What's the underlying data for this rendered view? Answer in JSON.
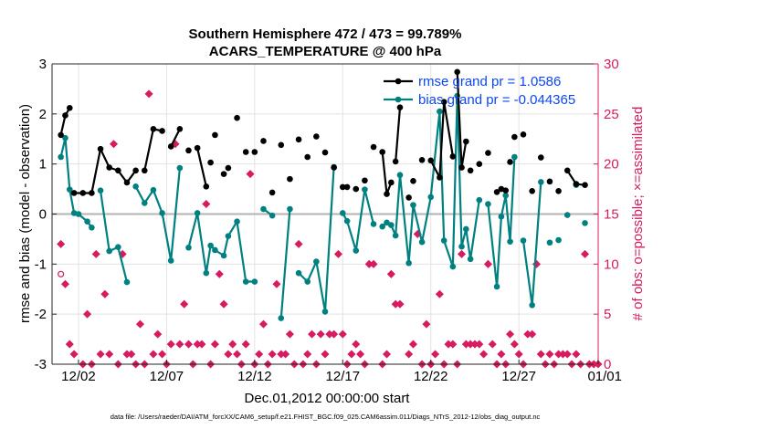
{
  "chart_data": {
    "type": "line",
    "title": "Southern Hemisphere 472 / 473 = 99.789%",
    "subtitle": "ACARS_TEMPERATURE @ 400 hPa",
    "xlabel": "Dec.01,2012 00:00:00 start",
    "ylabel": "rmse and bias (model - observation)",
    "y2label": "# of obs: o=possible; ×=assimilated",
    "footnote": "data file: /Users/raeder/DAI/ATM_forcXX/CAM6_setup/f.e21.FHIST_BGC.f09_025.CAM6assim.011/Diags_NTrS_2012-12/obs_diag_output.nc",
    "xlim": [
      0.5,
      31.5
    ],
    "ylim": [
      -3,
      3
    ],
    "y2lim": [
      0,
      30
    ],
    "x_ticks": [
      {
        "x": 2,
        "label": "12/02"
      },
      {
        "x": 7,
        "label": "12/07"
      },
      {
        "x": 12,
        "label": "12/12"
      },
      {
        "x": 17,
        "label": "12/17"
      },
      {
        "x": 22,
        "label": "12/22"
      },
      {
        "x": 27,
        "label": "12/27"
      },
      {
        "x": 32,
        "label": "01/01"
      }
    ],
    "y_ticks": [
      -3,
      -2,
      -1,
      0,
      1,
      2,
      3
    ],
    "y2_ticks": [
      0,
      5,
      10,
      15,
      20,
      25,
      30
    ],
    "grid": true,
    "legend_position": "top-right",
    "colors": {
      "rmse": "#000000",
      "bias": "#008080",
      "obs": "#d81b60"
    },
    "series": [
      {
        "name": "rmse grand pr = 1.0586",
        "key": "rmse",
        "points": [
          [
            1.0,
            1.58
          ],
          [
            1.25,
            1.97
          ],
          [
            1.5,
            2.12
          ],
          [
            1.75,
            0.42
          ],
          [
            2.25,
            0.42
          ],
          [
            2.75,
            0.42
          ],
          [
            3.25,
            1.3
          ],
          [
            3.75,
            0.93
          ],
          [
            4.25,
            0.87
          ],
          [
            4.75,
            0.63
          ],
          [
            5.25,
            0.87
          ],
          [
            5.75,
            0.87
          ],
          [
            6.25,
            1.7
          ],
          [
            6.75,
            1.66
          ],
          [
            7.25,
            1.35
          ],
          [
            7.75,
            1.7
          ],
          [
            8.25,
            1.27
          ],
          [
            8.75,
            1.32
          ],
          [
            9.25,
            0.55
          ],
          [
            9.5,
            1.03
          ],
          [
            9.75,
            1.58
          ],
          [
            10.25,
            0.8
          ],
          [
            10.5,
            0.92
          ],
          [
            11.0,
            1.92
          ],
          [
            11.5,
            1.24
          ],
          [
            12.0,
            1.24
          ],
          [
            12.5,
            1.46
          ],
          [
            13.0,
            0.43
          ],
          [
            13.5,
            1.38
          ],
          [
            14.0,
            0.7
          ],
          [
            14.5,
            1.49
          ],
          [
            15.0,
            1.14
          ],
          [
            15.5,
            1.55
          ],
          [
            16.0,
            1.23
          ],
          [
            16.5,
            0.93
          ],
          [
            17.0,
            0.54
          ],
          [
            17.25,
            0.54
          ],
          [
            17.75,
            0.5
          ],
          [
            18.25,
            0.67
          ],
          [
            18.75,
            1.34
          ],
          [
            19.25,
            1.24
          ],
          [
            19.5,
            0.4
          ],
          [
            19.75,
            0.63
          ],
          [
            20.0,
            1.05
          ],
          [
            20.25,
            2.13
          ],
          [
            20.75,
            0.33
          ],
          [
            21.0,
            0.66
          ],
          [
            21.5,
            1.08
          ],
          [
            22.0,
            1.07
          ],
          [
            22.5,
            0.73
          ],
          [
            22.75,
            2.24
          ],
          [
            23.25,
            1.15
          ],
          [
            23.5,
            2.84
          ],
          [
            23.75,
            0.93
          ],
          [
            24.0,
            1.45
          ],
          [
            24.25,
            0.87
          ],
          [
            24.75,
            1.0
          ],
          [
            25.25,
            1.22
          ],
          [
            25.75,
            0.44
          ],
          [
            26.0,
            0.5
          ],
          [
            26.25,
            0.47
          ],
          [
            26.5,
            1.04
          ],
          [
            26.75,
            1.54
          ],
          [
            27.25,
            1.59
          ],
          [
            27.75,
            0.46
          ],
          [
            28.25,
            1.13
          ],
          [
            28.75,
            0.65
          ],
          [
            29.25,
            0.46
          ],
          [
            29.75,
            0.87
          ],
          [
            30.25,
            0.6
          ],
          [
            30.75,
            0.58
          ]
        ],
        "break_before": [
          3,
          11,
          14,
          16,
          17,
          19,
          20,
          21,
          22,
          23,
          24,
          25,
          26,
          27,
          28,
          29,
          30,
          31,
          32,
          33,
          34,
          35,
          36,
          37,
          38,
          39,
          40,
          43,
          45,
          46,
          47,
          48,
          52,
          55,
          56,
          57,
          58,
          59,
          60,
          61,
          62,
          63,
          64,
          65,
          66,
          67,
          68
        ]
      },
      {
        "name": "bias grand pr = -0.044365",
        "key": "bias",
        "points": [
          [
            1.0,
            1.14
          ],
          [
            1.25,
            1.52
          ],
          [
            1.5,
            0.49
          ],
          [
            1.75,
            0.02
          ],
          [
            2.0,
            0.0
          ],
          [
            2.5,
            -0.15
          ],
          [
            2.75,
            -0.27
          ],
          [
            3.25,
            0.47
          ],
          [
            3.75,
            -0.74
          ],
          [
            4.25,
            -0.66
          ],
          [
            4.75,
            -1.36
          ],
          [
            5.25,
            0.55
          ],
          [
            5.75,
            0.22
          ],
          [
            6.25,
            0.48
          ],
          [
            6.75,
            0.02
          ],
          [
            7.25,
            -0.93
          ],
          [
            7.75,
            0.92
          ],
          [
            8.25,
            -0.67
          ],
          [
            8.75,
            0.02
          ],
          [
            9.25,
            -1.18
          ],
          [
            9.5,
            -0.63
          ],
          [
            9.75,
            -0.72
          ],
          [
            10.25,
            -0.83
          ],
          [
            10.5,
            -0.44
          ],
          [
            11.0,
            -0.15
          ],
          [
            11.5,
            -1.35
          ],
          [
            12.0,
            -1.35
          ],
          [
            12.5,
            0.1
          ],
          [
            13.0,
            -0.03
          ],
          [
            13.5,
            -2.08
          ],
          [
            14.0,
            0.1
          ],
          [
            14.5,
            -1.18
          ],
          [
            15.0,
            -1.35
          ],
          [
            15.5,
            -0.95
          ],
          [
            16.0,
            -1.95
          ],
          [
            16.5,
            0.94
          ],
          [
            17.0,
            0.02
          ],
          [
            17.25,
            -0.14
          ],
          [
            17.75,
            -0.73
          ],
          [
            18.25,
            0.49
          ],
          [
            18.75,
            -0.2
          ],
          [
            19.25,
            -0.25
          ],
          [
            19.5,
            -0.17
          ],
          [
            19.75,
            -0.22
          ],
          [
            20.0,
            -0.43
          ],
          [
            20.25,
            0.78
          ],
          [
            20.75,
            -0.98
          ],
          [
            21.0,
            0.18
          ],
          [
            21.5,
            -0.56
          ],
          [
            22.0,
            0.34
          ],
          [
            22.5,
            2.05
          ],
          [
            22.75,
            -0.53
          ],
          [
            23.25,
            -1.05
          ],
          [
            23.5,
            2.36
          ],
          [
            23.75,
            -0.65
          ],
          [
            24.0,
            -0.3
          ],
          [
            24.25,
            -0.9
          ],
          [
            24.75,
            0.28
          ],
          [
            25.25,
            0.2
          ],
          [
            25.75,
            -1.45
          ],
          [
            26.0,
            -0.05
          ],
          [
            26.25,
            0.37
          ],
          [
            26.5,
            -0.55
          ],
          [
            26.75,
            1.14
          ],
          [
            27.25,
            -0.53
          ],
          [
            27.75,
            -1.82
          ],
          [
            28.25,
            0.64
          ],
          [
            28.75,
            -0.57
          ],
          [
            29.25,
            -0.52
          ],
          [
            29.75,
            -0.02
          ],
          [
            30.25,
            0.58
          ],
          [
            30.75,
            -0.18
          ]
        ],
        "break_before": [
          7,
          11,
          17,
          27,
          29,
          31,
          36,
          41,
          58,
          64,
          67,
          68,
          69,
          70,
          71
        ]
      },
      {
        "name": "obs assimilated",
        "key": "obs",
        "marker": "x",
        "points": [
          [
            1.0,
            12
          ],
          [
            1.25,
            8
          ],
          [
            1.5,
            2
          ],
          [
            1.75,
            1
          ],
          [
            2.25,
            0
          ],
          [
            2.5,
            5
          ],
          [
            2.75,
            0
          ],
          [
            3.0,
            11
          ],
          [
            3.25,
            1
          ],
          [
            3.5,
            7
          ],
          [
            3.75,
            1
          ],
          [
            4.0,
            22
          ],
          [
            4.25,
            0
          ],
          [
            4.5,
            11
          ],
          [
            4.75,
            1
          ],
          [
            5.0,
            1
          ],
          [
            5.25,
            0
          ],
          [
            5.5,
            4
          ],
          [
            5.75,
            0
          ],
          [
            6.0,
            27
          ],
          [
            6.25,
            1
          ],
          [
            6.5,
            3
          ],
          [
            6.75,
            1
          ],
          [
            7.0,
            0
          ],
          [
            7.25,
            2
          ],
          [
            7.5,
            22
          ],
          [
            7.75,
            2
          ],
          [
            8.0,
            6
          ],
          [
            8.25,
            2
          ],
          [
            8.5,
            0
          ],
          [
            8.75,
            2
          ],
          [
            9.0,
            2
          ],
          [
            9.25,
            16
          ],
          [
            9.5,
            0
          ],
          [
            9.75,
            2
          ],
          [
            10.0,
            9
          ],
          [
            10.25,
            6
          ],
          [
            10.5,
            1
          ],
          [
            10.75,
            2
          ],
          [
            11.0,
            1
          ],
          [
            11.25,
            0
          ],
          [
            11.5,
            2
          ],
          [
            11.75,
            19
          ],
          [
            12.0,
            0
          ],
          [
            12.25,
            1
          ],
          [
            12.5,
            4
          ],
          [
            12.75,
            0
          ],
          [
            13.0,
            1
          ],
          [
            13.25,
            8
          ],
          [
            13.5,
            1
          ],
          [
            13.75,
            1
          ],
          [
            14.0,
            3
          ],
          [
            14.25,
            0
          ],
          [
            14.5,
            12
          ],
          [
            14.75,
            0
          ],
          [
            15.0,
            1
          ],
          [
            15.25,
            3
          ],
          [
            15.5,
            0
          ],
          [
            15.75,
            3
          ],
          [
            16.0,
            1
          ],
          [
            16.25,
            3
          ],
          [
            16.5,
            3
          ],
          [
            16.75,
            11
          ],
          [
            17.0,
            3
          ],
          [
            17.25,
            0
          ],
          [
            17.5,
            1
          ],
          [
            17.75,
            2
          ],
          [
            18.0,
            1
          ],
          [
            18.25,
            0
          ],
          [
            18.5,
            10
          ],
          [
            18.75,
            10
          ],
          [
            19.25,
            0
          ],
          [
            19.5,
            1
          ],
          [
            19.75,
            9
          ],
          [
            20.0,
            6
          ],
          [
            20.25,
            6
          ],
          [
            20.75,
            1
          ],
          [
            21.0,
            2
          ],
          [
            21.25,
            13
          ],
          [
            21.5,
            0
          ],
          [
            21.75,
            4
          ],
          [
            22.0,
            0
          ],
          [
            22.25,
            1
          ],
          [
            22.5,
            7
          ],
          [
            22.75,
            0
          ],
          [
            23.0,
            2
          ],
          [
            23.25,
            2
          ],
          [
            23.5,
            0
          ],
          [
            23.75,
            11
          ],
          [
            24.0,
            2
          ],
          [
            24.25,
            2
          ],
          [
            24.5,
            2
          ],
          [
            24.75,
            2
          ],
          [
            25.0,
            1
          ],
          [
            25.25,
            10
          ],
          [
            25.5,
            2
          ],
          [
            25.75,
            0
          ],
          [
            26.0,
            1
          ],
          [
            26.25,
            0
          ],
          [
            26.5,
            3
          ],
          [
            26.75,
            2
          ],
          [
            27.0,
            1
          ],
          [
            27.25,
            0
          ],
          [
            27.5,
            3
          ],
          [
            27.75,
            3
          ],
          [
            28.0,
            10
          ],
          [
            28.25,
            1
          ],
          [
            28.5,
            0
          ],
          [
            28.75,
            1
          ],
          [
            29.0,
            0
          ],
          [
            29.25,
            1
          ],
          [
            29.5,
            1
          ],
          [
            29.75,
            1
          ],
          [
            30.0,
            0
          ],
          [
            30.25,
            1
          ],
          [
            30.5,
            0
          ],
          [
            30.75,
            11
          ],
          [
            31.0,
            0
          ],
          [
            31.25,
            0
          ],
          [
            31.5,
            0
          ]
        ]
      },
      {
        "name": "obs possible",
        "key": "obs_possible",
        "marker": "o",
        "points": [
          [
            1.0,
            9
          ]
        ]
      }
    ]
  }
}
